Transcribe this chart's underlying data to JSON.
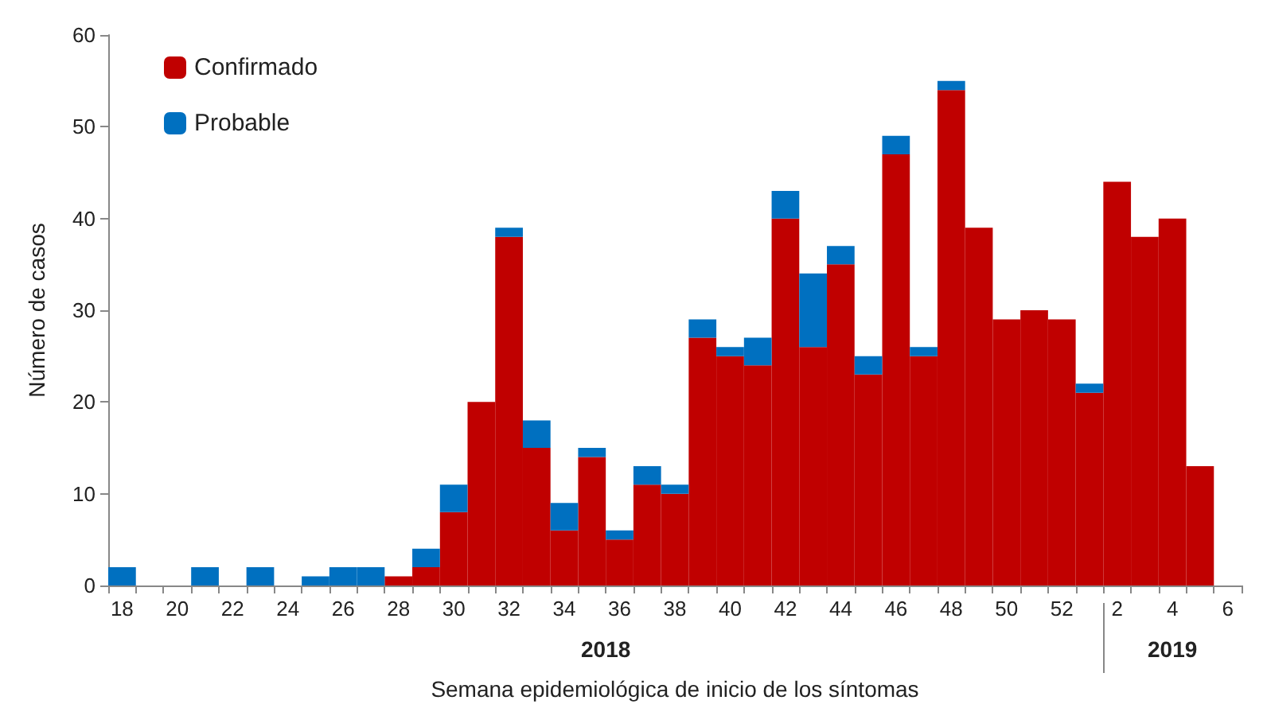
{
  "chart_data": {
    "type": "bar",
    "stacked": true,
    "xlabel": "Semana epidemiológica de inicio de los síntomas",
    "ylabel": "Número de casos",
    "categories": [
      "18",
      null,
      "20",
      null,
      "22",
      null,
      "24",
      null,
      "26",
      null,
      "28",
      null,
      "30",
      null,
      "32",
      null,
      "34",
      null,
      "36",
      null,
      "38",
      null,
      "40",
      null,
      "42",
      null,
      "44",
      null,
      "46",
      null,
      "48",
      null,
      "50",
      null,
      "52",
      null,
      "2",
      null,
      "4",
      null,
      "6"
    ],
    "series": [
      {
        "name": "Confirmado",
        "color": "#c00000",
        "values": [
          0,
          0,
          0,
          0,
          0,
          0,
          0,
          0,
          0,
          0,
          1,
          2,
          8,
          20,
          38,
          15,
          6,
          14,
          5,
          11,
          10,
          27,
          25,
          24,
          40,
          26,
          35,
          23,
          47,
          25,
          54,
          39,
          29,
          30,
          29,
          21,
          44,
          38,
          40,
          13,
          null
        ]
      },
      {
        "name": "Probable",
        "color": "#0070c0",
        "values": [
          2,
          0,
          0,
          2,
          0,
          2,
          0,
          1,
          2,
          2,
          0,
          2,
          3,
          0,
          1,
          3,
          3,
          1,
          1,
          2,
          1,
          2,
          1,
          3,
          3,
          8,
          2,
          2,
          2,
          1,
          1,
          0,
          0,
          0,
          0,
          1,
          0,
          0,
          0,
          0,
          null
        ]
      }
    ],
    "ylim": [
      0,
      60
    ],
    "yticks": [
      0,
      10,
      20,
      30,
      40,
      50,
      60
    ],
    "grid": false,
    "legend": "top left",
    "annotations": [
      "2018",
      "2019"
    ]
  }
}
